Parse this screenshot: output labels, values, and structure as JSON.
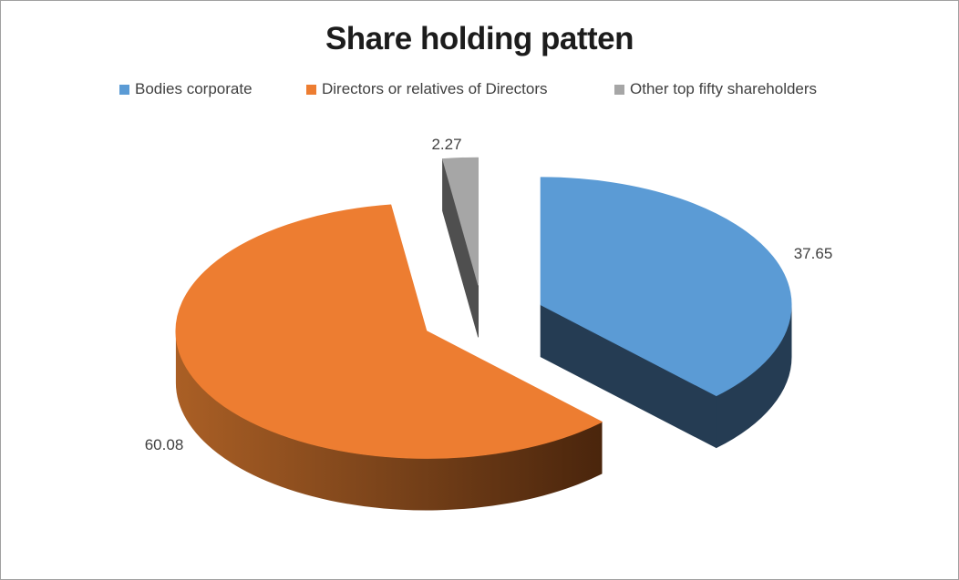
{
  "chart_data": {
    "type": "pie",
    "style": "3d-exploded",
    "title": "Share holding patten",
    "legend_position": "top",
    "total": 100,
    "slices": [
      {
        "label": "Bodies corporate",
        "value": 37.65,
        "value_label": "37.65",
        "color": "#5B9BD5",
        "side_color": "#253C53"
      },
      {
        "label": "Directors or relatives of Directors",
        "value": 60.08,
        "value_label": "60.08",
        "color": "#ED7D31",
        "side_color": "#7A431A",
        "side_gradient": [
          "#AA5F25",
          "#7A431A",
          "#4A250C"
        ]
      },
      {
        "label": "Other top fifty shareholders",
        "value": 2.27,
        "value_label": "2.27",
        "color": "#A6A6A6",
        "side_color": "#4F4F4F"
      }
    ]
  }
}
